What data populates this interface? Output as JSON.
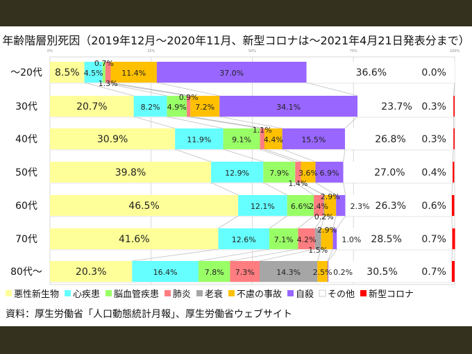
{
  "chart_data": {
    "type": "bar",
    "orientation": "horizontal",
    "stacked": "percent",
    "title": "年齢階層別死因（2019年12月～2020年11月、新型コロナは～2021年4月21日発表分まで）",
    "xlim": [
      0,
      100
    ],
    "x_ticks": [
      "0%",
      "25%",
      "50%",
      "75%",
      "100%"
    ],
    "grid": true,
    "legend_position": "bottom",
    "categories": [
      "～20代",
      "30代",
      "40代",
      "50代",
      "60代",
      "70代",
      "80代～"
    ],
    "series": [
      {
        "name": "悪性新生物",
        "color": "#ffff99",
        "values": [
          8.5,
          20.7,
          30.9,
          39.8,
          46.5,
          41.6,
          20.3
        ]
      },
      {
        "name": "心疾患",
        "color": "#66ffff",
        "values": [
          4.5,
          8.2,
          11.9,
          12.9,
          12.1,
          12.6,
          16.4
        ]
      },
      {
        "name": "脳血管疾患",
        "color": "#99ff66",
        "values": [
          0.7,
          4.9,
          9.1,
          7.9,
          6.6,
          7.1,
          7.8
        ]
      },
      {
        "name": "肺炎",
        "color": "#ff7c80",
        "values": [
          1.3,
          0.9,
          1.1,
          1.4,
          2.4,
          4.2,
          7.3
        ]
      },
      {
        "name": "老衰",
        "color": "#a6a6a6",
        "values": [
          null,
          null,
          null,
          null,
          0.2,
          1.5,
          14.3
        ]
      },
      {
        "name": "不慮の事故",
        "color": "#ffc000",
        "values": [
          11.4,
          7.2,
          4.4,
          3.6,
          2.9,
          2.9,
          2.5
        ]
      },
      {
        "name": "自殺",
        "color": "#9966ff",
        "values": [
          37.0,
          34.1,
          15.5,
          6.9,
          2.3,
          1.0,
          0.2
        ]
      },
      {
        "name": "その他",
        "color": "#ffffff",
        "values": [
          36.6,
          23.7,
          26.8,
          27.0,
          26.3,
          28.5,
          30.5
        ]
      },
      {
        "name": "新型コロナ",
        "color": "#ff0000",
        "values": [
          0.0,
          0.3,
          0.3,
          0.4,
          0.6,
          0.7,
          0.7
        ]
      }
    ]
  },
  "source": "資料：厚生労働省「人口動態統計月報」、厚生労働省ウェブサイト"
}
